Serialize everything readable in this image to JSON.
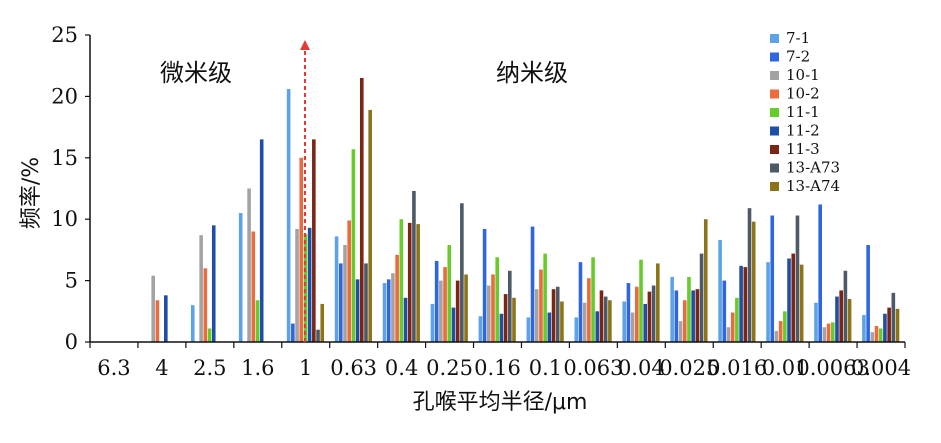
{
  "chart_data": {
    "type": "bar",
    "xlabel": "孔喉平均半径/μm",
    "ylabel": "频率/%",
    "ylim": [
      0,
      25
    ],
    "yticks": [
      "0",
      "5",
      "10",
      "15",
      "20",
      "25"
    ],
    "categories": [
      "6.3",
      "4",
      "2.5",
      "1.6",
      "1",
      "0.63",
      "0.4",
      "0.25",
      "0.16",
      "0.1",
      "0.063",
      "0.04",
      "0.025",
      "0.016",
      "0.01",
      "0.0063",
      "0.004"
    ],
    "annotations": [
      "微米级",
      "纳米级"
    ],
    "legend_position": "top-right",
    "series": [
      {
        "name": "7-1",
        "color": "#5ba3e6",
        "values": [
          0,
          0,
          3.0,
          10.5,
          20.6,
          8.6,
          4.8,
          3.1,
          2.1,
          2.0,
          2.0,
          3.3,
          5.3,
          8.3,
          6.5,
          3.2,
          2.2
        ]
      },
      {
        "name": "7-2",
        "color": "#2f66e0",
        "values": [
          0,
          0,
          0,
          0,
          1.5,
          6.4,
          5.1,
          6.6,
          9.2,
          9.4,
          6.5,
          4.8,
          4.2,
          5.0,
          10.3,
          11.2,
          7.9
        ]
      },
      {
        "name": "10-1",
        "color": "#a3a3a3",
        "values": [
          0,
          5.4,
          8.7,
          12.5,
          9.2,
          7.9,
          5.6,
          5.0,
          4.6,
          4.3,
          3.2,
          2.4,
          1.7,
          1.2,
          0.9,
          1.2,
          0.8
        ]
      },
      {
        "name": "10-2",
        "color": "#ec6a3c",
        "values": [
          0,
          3.4,
          6.0,
          9.0,
          15.0,
          9.9,
          7.1,
          6.1,
          5.5,
          5.9,
          5.2,
          4.5,
          3.4,
          2.4,
          1.7,
          1.5,
          1.3
        ]
      },
      {
        "name": "11-1",
        "color": "#66cc2a",
        "values": [
          0,
          0,
          1.1,
          3.4,
          8.8,
          15.7,
          10.0,
          7.9,
          6.9,
          7.2,
          6.9,
          6.7,
          5.3,
          3.6,
          2.5,
          1.6,
          1.1
        ]
      },
      {
        "name": "11-2",
        "color": "#1f4ea6",
        "values": [
          0,
          3.8,
          9.5,
          16.5,
          9.3,
          5.1,
          3.6,
          2.8,
          2.3,
          2.4,
          2.5,
          3.1,
          4.2,
          6.2,
          6.8,
          3.7,
          2.3
        ]
      },
      {
        "name": "11-3",
        "color": "#7b2514",
        "values": [
          0,
          0,
          0,
          0,
          16.5,
          21.5,
          9.7,
          5.0,
          3.9,
          4.3,
          4.2,
          4.1,
          4.3,
          6.1,
          7.2,
          4.2,
          2.8
        ]
      },
      {
        "name": "13-A73",
        "color": "#4d5965",
        "values": [
          0,
          0,
          0,
          0,
          1.0,
          6.4,
          12.3,
          11.3,
          5.8,
          4.5,
          3.7,
          4.6,
          7.2,
          10.9,
          10.3,
          5.8,
          4.0
        ]
      },
      {
        "name": "13-A74",
        "color": "#8d7419",
        "values": [
          0,
          0,
          0,
          0,
          3.1,
          18.9,
          9.6,
          5.5,
          3.6,
          3.3,
          3.4,
          6.4,
          10.0,
          9.8,
          6.3,
          3.5,
          2.7
        ]
      }
    ]
  }
}
